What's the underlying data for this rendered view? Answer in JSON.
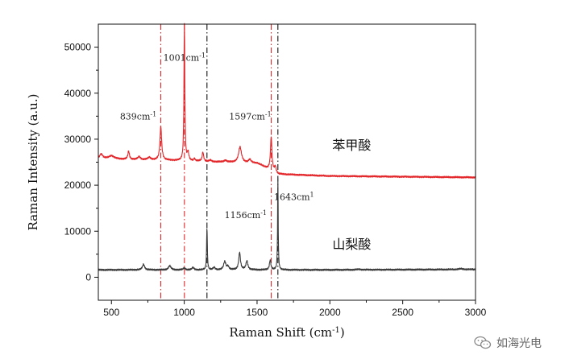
{
  "chart_data": {
    "type": "line",
    "xlabel": "Raman Shift (cm",
    "xlabel_sup": "-1",
    "xlabel_close": ")",
    "ylabel": "Raman Intensity (a.u.)",
    "xlim": [
      410,
      3000
    ],
    "ylim": [
      -5000,
      55000
    ],
    "x_ticks": [
      500,
      1000,
      1500,
      2000,
      2500,
      3000
    ],
    "y_ticks": [
      0,
      10000,
      20000,
      30000,
      40000,
      50000
    ],
    "series": [
      {
        "name": "苯甲酸",
        "color": "#e3262a",
        "baseline": [
          [
            410,
            25800
          ],
          [
            900,
            25400
          ],
          [
            1500,
            24800
          ],
          [
            1650,
            22400
          ],
          [
            2000,
            22000
          ],
          [
            3000,
            21700
          ]
        ],
        "peaks": [
          [
            430,
            1000,
            12
          ],
          [
            500,
            700,
            20
          ],
          [
            618,
            1800,
            6
          ],
          [
            690,
            600,
            10
          ],
          [
            760,
            500,
            12
          ],
          [
            839,
            7200,
            7
          ],
          [
            1001,
            29600,
            3.5
          ],
          [
            1026,
            1800,
            6
          ],
          [
            1070,
            500,
            6
          ],
          [
            1128,
            2000,
            6
          ],
          [
            1180,
            300,
            8
          ],
          [
            1282,
            400,
            10
          ],
          [
            1383,
            3400,
            12
          ],
          [
            1450,
            700,
            10
          ],
          [
            1597,
            7300,
            6
          ],
          [
            1625,
            1200,
            6
          ]
        ]
      },
      {
        "name": "山梨酸",
        "color": "#3a3a3a",
        "baseline": [
          [
            410,
            1600
          ],
          [
            1000,
            1600
          ],
          [
            2000,
            1600
          ],
          [
            3000,
            1700
          ]
        ],
        "peaks": [
          [
            720,
            1200,
            9
          ],
          [
            900,
            900,
            10
          ],
          [
            1000,
            400,
            8
          ],
          [
            1060,
            500,
            8
          ],
          [
            1156,
            9200,
            3
          ],
          [
            1205,
            500,
            8
          ],
          [
            1278,
            1800,
            9
          ],
          [
            1300,
            700,
            8
          ],
          [
            1380,
            3800,
            7
          ],
          [
            1430,
            1900,
            8
          ],
          [
            1590,
            2100,
            6
          ],
          [
            1643,
            19800,
            2.5
          ],
          [
            2200,
            100,
            20
          ],
          [
            2900,
            150,
            20
          ]
        ]
      }
    ],
    "annotations": [
      {
        "base": "1001cm",
        "sup": "-1",
        "x": 1001,
        "y": 47000,
        "series": "苯甲酸"
      },
      {
        "base": "839cm",
        "sup": "-1",
        "x": 839,
        "y": 34300,
        "series": "苯甲酸"
      },
      {
        "base": "1597cm",
        "sup": "-1",
        "x": 1597,
        "y": 34300,
        "series": "苯甲酸"
      },
      {
        "base": "1156cm",
        "sup": "-1",
        "x": 1156,
        "y": 12800,
        "series": "山梨酸"
      },
      {
        "base": "1643cm",
        "sup": "1",
        "x": 1643,
        "y": 16800,
        "series": "山梨酸"
      }
    ],
    "reference_lines": [
      {
        "x": 839,
        "color": "#e3262a",
        "style": "dashdot"
      },
      {
        "x": 1001,
        "color": "#e3262a",
        "style": "dashdot"
      },
      {
        "x": 1597,
        "color": "#e3262a",
        "style": "dashdot"
      },
      {
        "x": 1156,
        "color": "#111111",
        "style": "dashdot"
      },
      {
        "x": 1643,
        "color": "#111111",
        "style": "dashdot"
      }
    ],
    "series_labels": [
      {
        "text": "苯甲酸",
        "x": 2150,
        "y": 27700
      },
      {
        "text": "山梨酸",
        "x": 2150,
        "y": 6200
      }
    ]
  },
  "watermark": {
    "icon": "wechat-icon",
    "text": "如海光电"
  }
}
